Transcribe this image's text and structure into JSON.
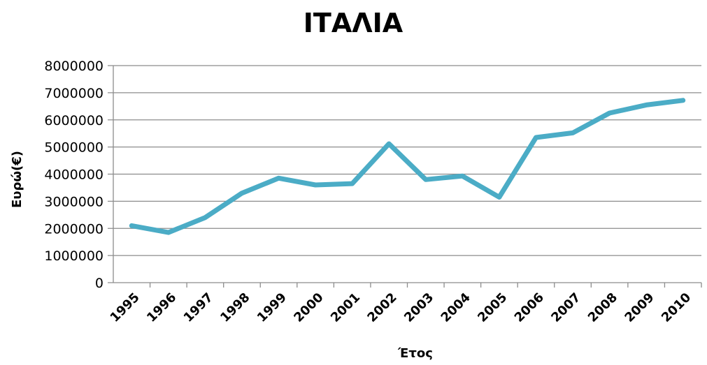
{
  "chart_data": {
    "type": "line",
    "title": "ΙΤΑΛΙΑ",
    "xlabel": "Έτος",
    "ylabel": "Ευρώ(€)",
    "categories": [
      "1995",
      "1996",
      "1997",
      "1998",
      "1999",
      "2000",
      "2001",
      "2002",
      "2003",
      "2004",
      "2005",
      "2006",
      "2007",
      "2008",
      "2009",
      "2010"
    ],
    "ylim": [
      0,
      8000000
    ],
    "yticks": [
      "0",
      "1000000",
      "2000000",
      "3000000",
      "4000000",
      "5000000",
      "6000000",
      "7000000",
      "8000000"
    ],
    "grid": true,
    "legend": "none",
    "series": [
      {
        "color": "#4bacc6",
        "values": [
          2100000,
          1850000,
          2400000,
          3300000,
          3850000,
          3600000,
          3650000,
          5120000,
          3800000,
          3930000,
          3150000,
          5350000,
          5520000,
          6250000,
          6550000,
          6720000
        ]
      }
    ]
  }
}
